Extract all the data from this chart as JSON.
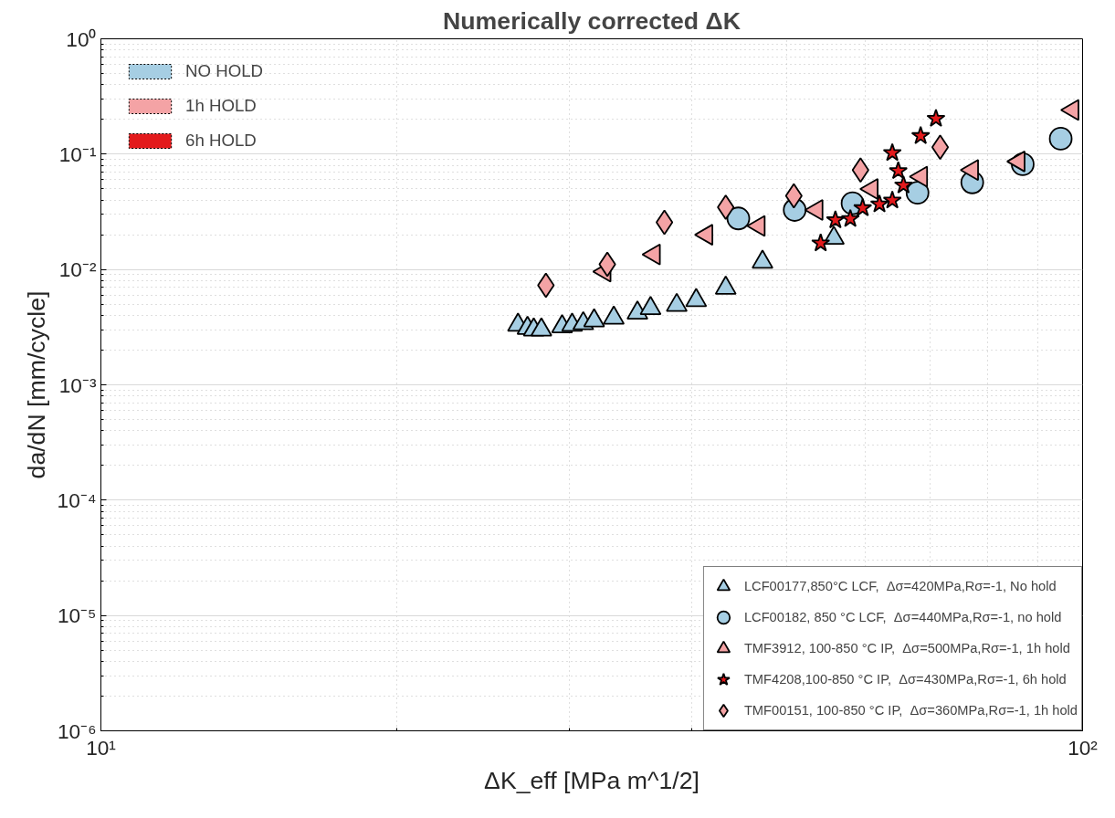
{
  "chart_data": {
    "type": "scatter",
    "title": "Numerically corrected ΔK",
    "xlabel": "ΔK_eff [MPa m^1/2]",
    "ylabel": "da/dN [mm/cycle]",
    "log": "xy",
    "grid": true,
    "legend": "bottom right",
    "xlim": [
      10,
      100
    ],
    "xticks": [
      {
        "value": 10,
        "label": "10¹"
      },
      {
        "value": 100,
        "label": "10²"
      }
    ],
    "ylim": [
      1e-06,
      1
    ],
    "yticks": [
      {
        "value": 1e-06,
        "label": "10⁻⁶"
      },
      {
        "value": 1e-05,
        "label": "10⁻⁵"
      },
      {
        "value": 0.0001,
        "label": "10⁻⁴"
      },
      {
        "value": 0.001,
        "label": "10⁻³"
      },
      {
        "value": 0.01,
        "label": "10⁻²"
      },
      {
        "value": 0.1,
        "label": "10⁻¹"
      },
      {
        "value": 1,
        "label": "10⁰"
      }
    ],
    "series": [
      {
        "type": "bar",
        "name": "NO HOLD",
        "color": "#a6cee3"
      },
      {
        "type": "bar",
        "name": "1h HOLD",
        "color": "#f4a3a5"
      },
      {
        "type": "bar",
        "name": "6h HOLD",
        "color": "#e31a1c"
      },
      {
        "name": "LCF00177,850°C LCF,  Δσ=420MPa,Rσ=-1, No hold",
        "color": "#a6cee3",
        "marker": "triangle",
        "x": [
          26.6,
          27.2,
          27.6,
          28.1,
          29.5,
          30.2,
          31.0,
          31.8,
          33.3,
          35.2,
          36.3,
          38.6,
          40.4,
          43.3,
          47.2,
          55.8
        ],
        "values": [
          0.0033,
          0.0031,
          0.003,
          0.003,
          0.0032,
          0.0033,
          0.0034,
          0.0036,
          0.0038,
          0.0042,
          0.0046,
          0.0049,
          0.0054,
          0.0069,
          0.0116,
          0.0187
        ]
      },
      {
        "name": "LCF00182, 850 °C LCF,  Δσ=440MPa,Rσ=-1, no hold",
        "color": "#a6cee3",
        "marker": "circle",
        "x": [
          44.6,
          50.9,
          58.3,
          67.9,
          77.2,
          86.9,
          95.0
        ],
        "values": [
          0.0277,
          0.0328,
          0.0375,
          0.0462,
          0.0569,
          0.0817,
          0.136
        ]
      },
      {
        "name": "TMF3912, 100-850 °C IP,  Δσ=500MPa,Rσ=-1, 1h hold",
        "color": "#f4a3a5",
        "marker": "triangle_left",
        "x": [
          32.6,
          36.6,
          41.4,
          46.8,
          53.6,
          61.0,
          68.5,
          77.2,
          86.1,
          97.7
        ],
        "values": [
          0.0096,
          0.0135,
          0.02,
          0.0238,
          0.0328,
          0.0498,
          0.0638,
          0.0728,
          0.0864,
          0.241
        ]
      },
      {
        "name": "TMF4208,100-850 °C IP,  Δσ=430MPa,Rσ=-1, 6h hold",
        "color": "#e31a1c",
        "marker": "star",
        "x": [
          54.1,
          56.0,
          58.0,
          59.7,
          62.1,
          64.0,
          65.7,
          64.9,
          64.0,
          68.4,
          70.9
        ],
        "values": [
          0.0169,
          0.0268,
          0.0275,
          0.0341,
          0.0368,
          0.0397,
          0.0537,
          0.0715,
          0.1025,
          0.144,
          0.203
        ]
      },
      {
        "name": "TMF00151, 100-850 °C IP,  Δσ=360MPa,Rσ=-1, 1h hold",
        "color": "#f4a3a5",
        "marker": "diamond",
        "x": [
          28.4,
          32.8,
          37.5,
          43.3,
          50.8,
          59.4,
          71.6
        ],
        "values": [
          0.0073,
          0.0111,
          0.0256,
          0.0347,
          0.0436,
          0.0728,
          0.115
        ]
      }
    ]
  }
}
